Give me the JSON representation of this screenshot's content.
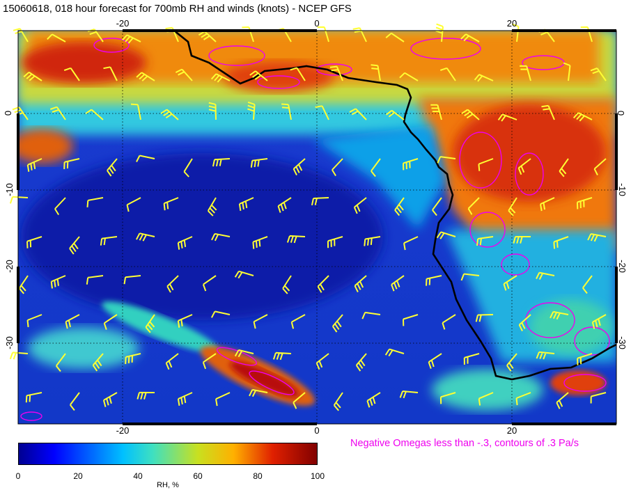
{
  "title": "15060618, 018 hour forecast for 700mb RH and winds (knots) - NCEP GFS",
  "map": {
    "lon_range": [
      -30,
      32
    ],
    "lat_range": [
      -40,
      10
    ],
    "lon_ticks_top": [
      "-20",
      "0",
      "20"
    ],
    "lon_ticks_bottom": [
      "-20",
      "0",
      "20"
    ],
    "lat_ticks": [
      "0",
      "-10",
      "-20",
      "-30"
    ],
    "gridlines": "dotted",
    "overlays": [
      "RH shaded field",
      "wind barbs (yellow)",
      "negative omega contours (magenta)",
      "coastline (black)"
    ]
  },
  "omega_note": "Negative Omegas less than -.3, contours of .3 Pa/s",
  "colorbar": {
    "ticks": [
      "0",
      "20",
      "40",
      "60",
      "80",
      "100"
    ],
    "label": "RH, %"
  },
  "colors": {
    "wind_barb": "#ffff33",
    "omega_contour": "#ee00ee",
    "coastline": "#000000"
  }
}
